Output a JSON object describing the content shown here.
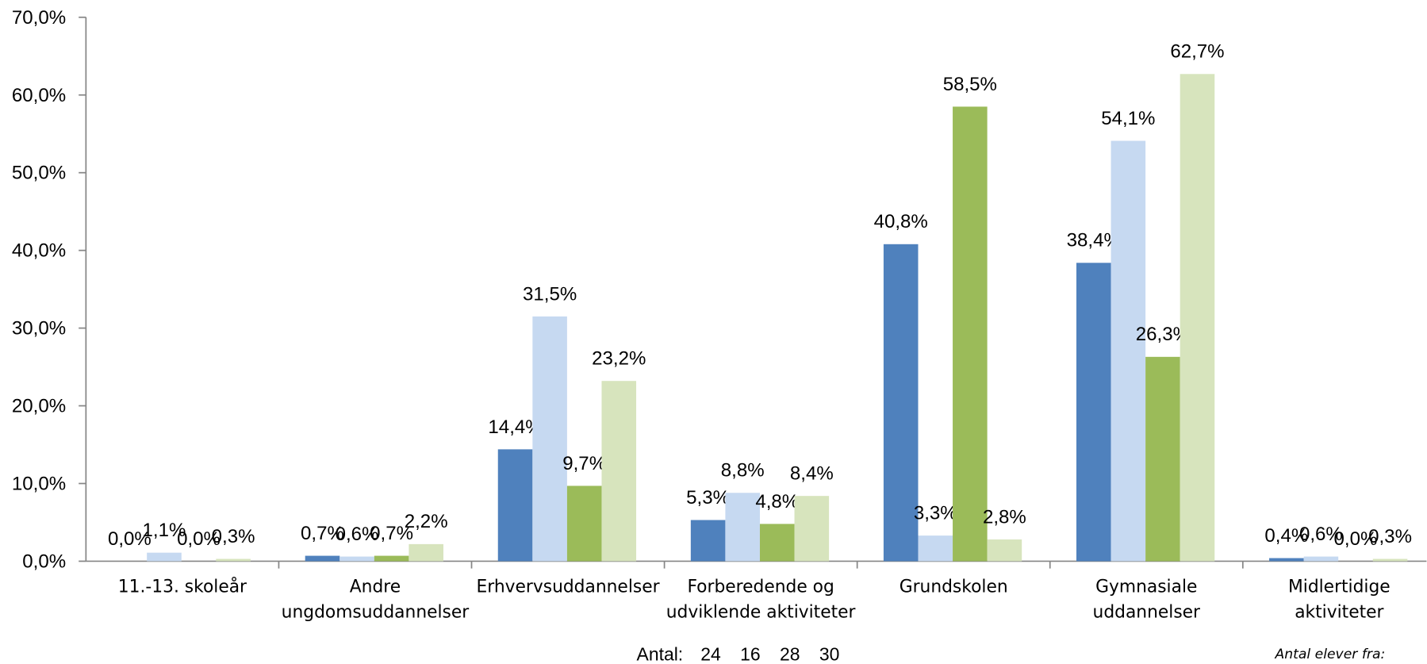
{
  "chart_data": {
    "type": "bar",
    "categories": [
      [
        "11.-13. skoleår"
      ],
      [
        "Andre",
        "ungdomsuddannelser"
      ],
      [
        "Erhvervsuddannelser"
      ],
      [
        "Forberedende og",
        "udviklende aktiviteter"
      ],
      [
        "Grundskolen"
      ],
      [
        "Gymnasiale",
        "uddannelser"
      ],
      [
        "Midlertidige",
        "aktiviteter"
      ]
    ],
    "series": [
      {
        "color": "#4f81bd",
        "values": [
          0.0,
          0.7,
          14.4,
          5.3,
          40.8,
          38.4,
          0.4
        ],
        "value_labels": [
          "0,0%",
          "0,7%",
          "14,4%",
          "5,3%",
          "40,8%",
          "38,4%",
          "0,4%"
        ]
      },
      {
        "color": "#c6d9f1",
        "values": [
          1.1,
          0.6,
          31.5,
          8.8,
          3.3,
          54.1,
          0.6
        ],
        "value_labels": [
          "1,1%",
          "0,6%",
          "31,5%",
          "8,8%",
          "3,3%",
          "54,1%",
          "0,6%"
        ]
      },
      {
        "color": "#9bbb59",
        "values": [
          0.0,
          0.7,
          9.7,
          4.8,
          58.5,
          26.3,
          0.0
        ],
        "value_labels": [
          "0,0%",
          "0,7%",
          "9,7%",
          "4,8%",
          "58,5%",
          "26,3%",
          "0,0%"
        ]
      },
      {
        "color": "#d7e4bd",
        "values": [
          0.3,
          2.2,
          23.2,
          8.4,
          2.8,
          62.7,
          0.3
        ],
        "value_labels": [
          "0,3%",
          "2,2%",
          "23,2%",
          "8,4%",
          "2,8%",
          "62,7%",
          "0,3%"
        ]
      }
    ],
    "ylim": [
      0,
      70
    ],
    "yticks": [
      {
        "value": 0,
        "label": "0,0%"
      },
      {
        "value": 10,
        "label": "10,0%"
      },
      {
        "value": 20,
        "label": "20,0%"
      },
      {
        "value": 30,
        "label": "30,0%"
      },
      {
        "value": 40,
        "label": "40,0%"
      },
      {
        "value": 50,
        "label": "50,0%"
      },
      {
        "value": 60,
        "label": "60,0%"
      },
      {
        "value": 70,
        "label": "70,0%"
      }
    ],
    "grid": false,
    "annotations": {
      "antal_label": "Antal:",
      "antal_values": [
        24,
        16,
        28,
        30
      ],
      "note": "Antal elever fra:"
    }
  }
}
